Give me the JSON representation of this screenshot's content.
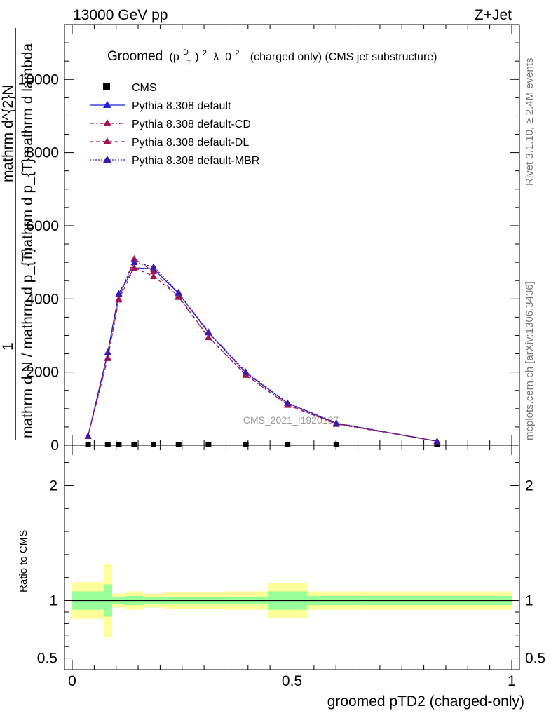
{
  "header": {
    "left": "13000 GeV pp",
    "right": "Z+Jet"
  },
  "plot_title": {
    "lead": "Groomed",
    "p": "(p",
    "sup_D": "D",
    "sub_T": "T",
    "close": ")",
    "sup2": "2",
    "lambda": "λ_0",
    "sup2b": "2",
    "rest": "(charged only) (CMS jet substructure)"
  },
  "side_labels": {
    "rivet": "Rivet 3.1.10, ≥ 2.4M events",
    "mcplots": "mcplots.cern.ch [arXiv:1306.3436]"
  },
  "watermark": "CMS_2021_I1920187",
  "ylabel_main": {
    "one": "1",
    "numerator": "mathrm d^{2}N",
    "denominator_top": "mathrm d p_{T}mathrm d lambda",
    "left": "mathrm d N / mathrm d p_{T}"
  },
  "ylabel_ratio": "Ratio to CMS",
  "xlabel": "groomed pTD2 (charged-only)",
  "legend": [
    {
      "label": "CMS",
      "color": "#000000",
      "style": "square"
    },
    {
      "label": "Pythia 8.308 default",
      "color": "#1f1fd0",
      "style": "solid"
    },
    {
      "label": "Pythia 8.308 default-CD",
      "color": "#a0154f",
      "style": "dashdot"
    },
    {
      "label": "Pythia 8.308 default-DL",
      "color": "#a0154f",
      "style": "dashed"
    },
    {
      "label": "Pythia 8.308 default-MBR",
      "color": "#3a1ab0",
      "style": "dotted"
    }
  ],
  "chart_data": [
    {
      "type": "line",
      "panel": "main",
      "xlim": [
        0,
        1
      ],
      "ylim": [
        0,
        11500
      ],
      "yticks": [
        "0",
        "2000",
        "4000",
        "6000",
        "8000",
        "10000"
      ],
      "ytick_values": [
        0,
        2000,
        4000,
        6000,
        8000,
        10000
      ],
      "x": [
        0.036,
        0.081,
        0.106,
        0.141,
        0.185,
        0.242,
        0.31,
        0.395,
        0.49,
        0.601,
        0.83
      ],
      "series": [
        {
          "name": "CMS",
          "values": [
            20,
            20,
            20,
            20,
            20,
            20,
            20,
            20,
            20,
            20,
            20
          ]
        },
        {
          "name": "Pythia 8.308 default",
          "values": [
            250,
            2550,
            4150,
            4850,
            4820,
            4150,
            3080,
            1980,
            1150,
            600,
            110
          ]
        },
        {
          "name": "Pythia 8.308 default-CD",
          "values": [
            250,
            2400,
            4000,
            5100,
            4750,
            4050,
            2950,
            1920,
            1100,
            580,
            110
          ]
        },
        {
          "name": "Pythia 8.308 default-DL",
          "values": [
            250,
            2380,
            3980,
            4850,
            4620,
            4080,
            2960,
            1930,
            1110,
            590,
            110
          ]
        },
        {
          "name": "Pythia 8.308 default-MBR",
          "values": [
            260,
            2530,
            4130,
            5000,
            4880,
            4180,
            3100,
            2010,
            1160,
            610,
            115
          ]
        }
      ]
    },
    {
      "type": "area",
      "panel": "ratio",
      "xlim": [
        0,
        1
      ],
      "ylim": [
        0.4,
        2.35
      ],
      "xticks": [
        "0",
        "0.5",
        "1"
      ],
      "xtick_values": [
        0,
        0.5,
        1
      ],
      "yticks": [
        "0.5",
        "1",
        "2"
      ],
      "ytick_values": [
        0.5,
        1,
        2
      ],
      "bin_edges": [
        0.0,
        0.072,
        0.091,
        0.121,
        0.161,
        0.209,
        0.275,
        0.345,
        0.445,
        0.535,
        0.667,
        1.0
      ],
      "inner_band": [
        [
          0.92,
          1.08
        ],
        [
          0.86,
          1.14
        ],
        [
          0.97,
          1.03
        ],
        [
          0.96,
          1.04
        ],
        [
          0.97,
          1.03
        ],
        [
          0.97,
          1.03
        ],
        [
          0.97,
          1.03
        ],
        [
          0.97,
          1.03
        ],
        [
          0.92,
          1.08
        ],
        [
          0.96,
          1.04
        ],
        [
          0.96,
          1.04
        ],
        [
          0.96,
          1.04
        ]
      ],
      "outer_band": [
        [
          0.84,
          1.16
        ],
        [
          0.68,
          1.32
        ],
        [
          0.94,
          1.06
        ],
        [
          0.92,
          1.08
        ],
        [
          0.94,
          1.06
        ],
        [
          0.93,
          1.07
        ],
        [
          0.93,
          1.07
        ],
        [
          0.92,
          1.08
        ],
        [
          0.85,
          1.15
        ],
        [
          0.92,
          1.08
        ],
        [
          0.92,
          1.08
        ],
        [
          0.92,
          1.08
        ]
      ],
      "reference": 1
    }
  ]
}
